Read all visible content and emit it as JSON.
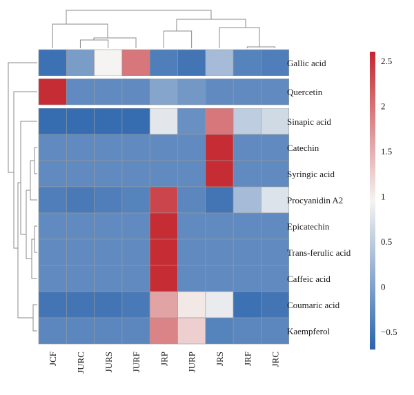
{
  "chart_data": {
    "type": "heatmap",
    "columns": [
      "JCF",
      "JURC",
      "JURS",
      "JURF",
      "JRP",
      "JURP",
      "JRS",
      "JRF",
      "JRC"
    ],
    "rows": [
      "Gallic acid",
      "Quercetin",
      "Sinapic acid",
      "Catechin",
      "Syringic acid",
      "Procyanidin A2",
      "Epicatechin",
      "Trans-ferulic acid",
      "Caffeic acid",
      "Coumaric acid",
      "Kaempferol"
    ],
    "values": [
      [
        -0.55,
        -0.05,
        0.95,
        1.95,
        -0.4,
        -0.5,
        0.3,
        -0.35,
        -0.4
      ],
      [
        2.55,
        -0.25,
        -0.25,
        -0.25,
        0.05,
        -0.1,
        -0.25,
        -0.25,
        -0.25
      ],
      [
        -0.6,
        -0.6,
        -0.6,
        -0.6,
        0.8,
        -0.2,
        1.95,
        0.5,
        0.65
      ],
      [
        -0.25,
        -0.25,
        -0.25,
        -0.25,
        -0.25,
        -0.25,
        2.55,
        -0.25,
        -0.25
      ],
      [
        -0.25,
        -0.25,
        -0.25,
        -0.25,
        -0.25,
        -0.25,
        2.55,
        -0.25,
        -0.25
      ],
      [
        -0.4,
        -0.45,
        -0.4,
        -0.35,
        2.35,
        -0.3,
        -0.5,
        0.3,
        0.75
      ],
      [
        -0.25,
        -0.25,
        -0.25,
        -0.25,
        2.55,
        -0.25,
        -0.25,
        -0.25,
        -0.25
      ],
      [
        -0.25,
        -0.25,
        -0.25,
        -0.25,
        2.55,
        -0.25,
        -0.25,
        -0.25,
        -0.25
      ],
      [
        -0.25,
        -0.25,
        -0.25,
        -0.25,
        2.55,
        -0.25,
        -0.25,
        -0.25,
        -0.25
      ],
      [
        -0.5,
        -0.5,
        -0.5,
        -0.45,
        1.6,
        1.05,
        0.85,
        -0.55,
        -0.5
      ],
      [
        -0.3,
        -0.3,
        -0.3,
        -0.3,
        1.85,
        1.25,
        -0.35,
        -0.3,
        -0.3
      ]
    ],
    "colorbar": {
      "ticks": [
        2.5,
        2,
        1.5,
        1,
        0.5,
        0,
        -0.5
      ],
      "tick_labels": [
        "2.5",
        "2",
        "1.5",
        "1",
        "0.5",
        "0",
        "−0.5"
      ],
      "range": [
        -0.7,
        2.6
      ],
      "low_color": "#2a64ad",
      "mid_color": "#f5f4f2",
      "high_color": "#c4262e"
    },
    "row_groups_separated_after": [
      "Gallic acid",
      "Quercetin"
    ],
    "column_dendrogram": true,
    "row_dendrogram": true
  }
}
